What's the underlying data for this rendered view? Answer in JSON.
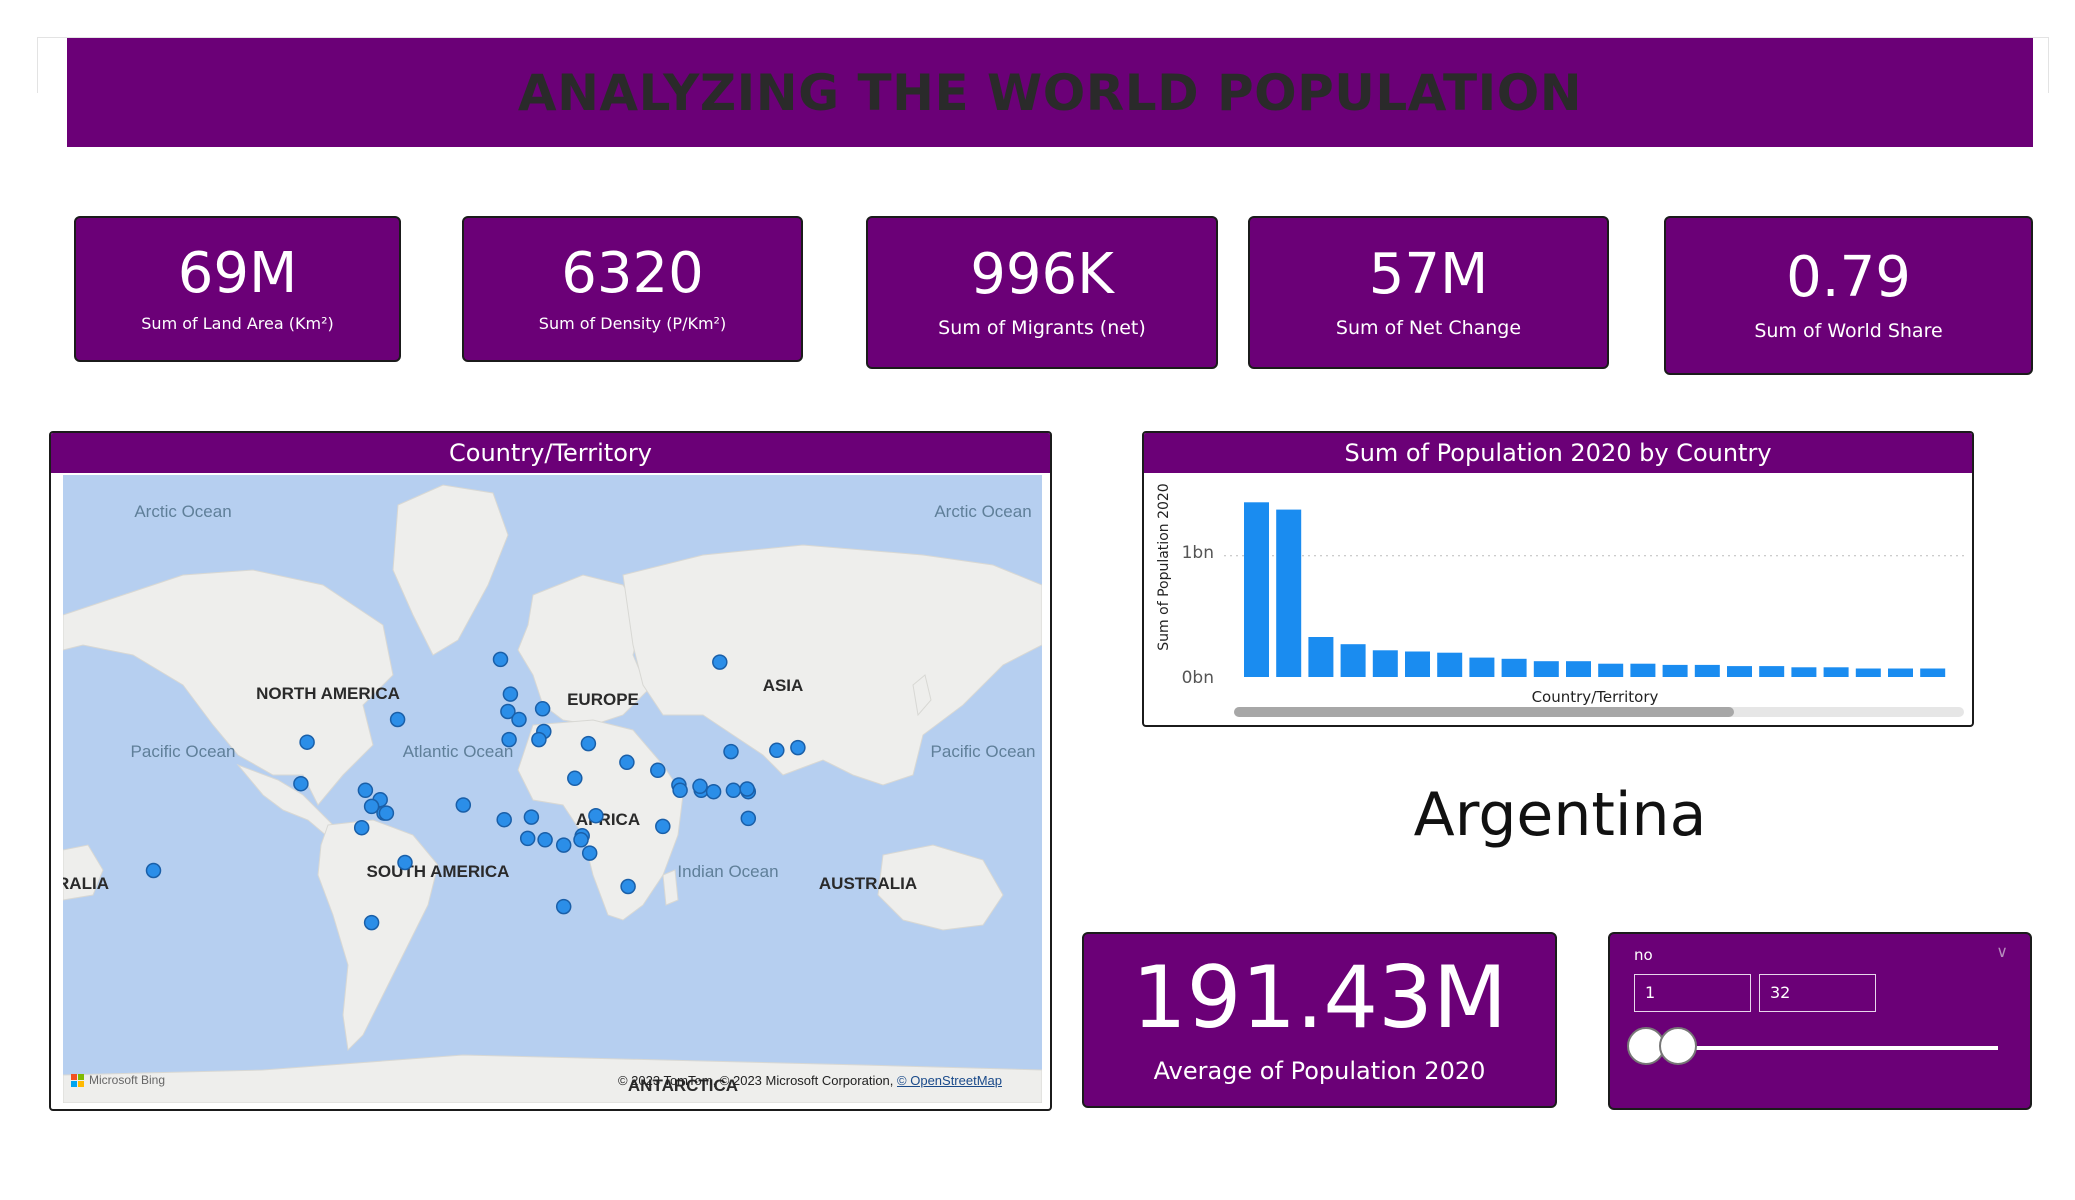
{
  "header": {
    "title": "ANALYZING THE WORLD POPULATION"
  },
  "kpis": [
    {
      "value": "69M",
      "label": "Sum of Land Area (Km²)"
    },
    {
      "value": "6320",
      "label": "Sum of Density  (P/Km²)"
    },
    {
      "value": "996K",
      "label": "Sum of Migrants (net)"
    },
    {
      "value": "57M",
      "label": "Sum of Net Change"
    },
    {
      "value": "0.79",
      "label": "Sum of World Share"
    }
  ],
  "map": {
    "title": "Country/Territory",
    "labels": {
      "arctic_left": "Arctic Ocean",
      "arctic_right": "Arctic Ocean",
      "pacific_left": "Pacific Ocean",
      "pacific_right": "Pacific Ocean",
      "atlantic": "Atlantic Ocean",
      "indian": "Indian Ocean",
      "north_america": "NORTH AMERICA",
      "south_america": "SOUTH AMERICA",
      "europe": "EUROPE",
      "asia": "ASIA",
      "africa": "AFRICA",
      "australia_left": "RALIA",
      "australia": "AUSTRALIA",
      "antarctica": "ANTARCTICA"
    },
    "bing_logo": "Microsoft Bing",
    "copyright": "© 2023 TomTom, © 2023 Microsoft Corporation,",
    "osm_link": "© OpenStreetMap",
    "bubble_color": "#2b8ee8"
  },
  "bar_chart": {
    "title": "Sum of Population 2020 by Country",
    "xlabel": "Country/Territory",
    "ylabel": "Sum of Population 2020",
    "yticks": [
      "0bn",
      "1bn"
    ],
    "bar_color": "#1a8cf0",
    "chart_data": {
      "type": "bar",
      "title": "Sum of Population 2020 by Country",
      "xlabel": "Country/Territory",
      "ylabel": "Sum of Population 2020",
      "ylim": [
        0,
        1.5
      ],
      "unit": "bn",
      "values": [
        1.44,
        1.38,
        0.33,
        0.27,
        0.22,
        0.21,
        0.2,
        0.16,
        0.15,
        0.13,
        0.13,
        0.11,
        0.11,
        0.1,
        0.1,
        0.09,
        0.09,
        0.08,
        0.08,
        0.07,
        0.07,
        0.07
      ]
    }
  },
  "selected": {
    "country": "Argentina"
  },
  "avg_card": {
    "value": "191.43M",
    "label": "Average of Population 2020"
  },
  "slicer": {
    "title": "no",
    "min": "1",
    "max": "32",
    "range_lo": 1,
    "range_hi": 32,
    "selected_hi": 3
  }
}
